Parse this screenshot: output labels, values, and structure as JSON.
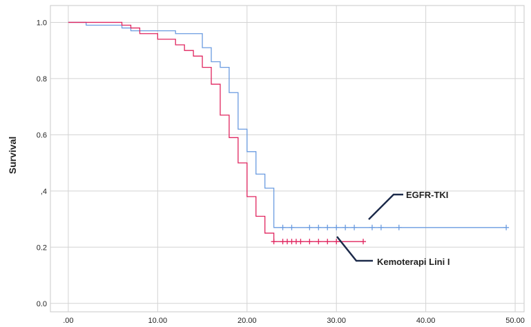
{
  "chart_data": {
    "type": "line",
    "subtype": "kaplan-meier step",
    "title": "",
    "xlabel": "",
    "ylabel": "Survival",
    "xlim": [
      -2,
      51
    ],
    "ylim": [
      -0.03,
      1.06
    ],
    "grid": true,
    "x_ticks": [
      0,
      10,
      20,
      30,
      40,
      50
    ],
    "x_tick_labels": [
      ".00",
      "10.00",
      "20.00",
      "30.00",
      "40.00",
      "50.00"
    ],
    "y_ticks": [
      0,
      0.2,
      0.4,
      0.6,
      0.8,
      1.0
    ],
    "y_tick_labels": [
      "0.0",
      "0.2",
      ",4",
      "0.6",
      "0.8",
      "1.0"
    ],
    "series": [
      {
        "name": "EGFR-TKI",
        "color": "#6a9be0",
        "steps": [
          [
            0,
            1.0
          ],
          [
            2,
            0.99
          ],
          [
            6,
            0.98
          ],
          [
            7,
            0.97
          ],
          [
            12,
            0.96
          ],
          [
            15,
            0.91
          ],
          [
            16,
            0.86
          ],
          [
            17,
            0.84
          ],
          [
            18,
            0.75
          ],
          [
            19,
            0.62
          ],
          [
            20,
            0.54
          ],
          [
            21,
            0.46
          ],
          [
            22,
            0.41
          ],
          [
            23,
            0.27
          ],
          [
            49,
            0.27
          ]
        ],
        "censored": [
          24,
          25,
          27,
          28,
          29,
          30,
          31,
          32,
          34,
          35,
          37,
          49
        ]
      },
      {
        "name": "Kemoterapi Lini I",
        "color": "#e0245e",
        "steps": [
          [
            0,
            1.0
          ],
          [
            6,
            0.99
          ],
          [
            7,
            0.98
          ],
          [
            8,
            0.96
          ],
          [
            10,
            0.94
          ],
          [
            12,
            0.92
          ],
          [
            13,
            0.9
          ],
          [
            14,
            0.88
          ],
          [
            15,
            0.84
          ],
          [
            16,
            0.78
          ],
          [
            17,
            0.67
          ],
          [
            18,
            0.59
          ],
          [
            19,
            0.5
          ],
          [
            20,
            0.38
          ],
          [
            21,
            0.31
          ],
          [
            22,
            0.25
          ],
          [
            23,
            0.22
          ],
          [
            33,
            0.22
          ]
        ],
        "censored": [
          23,
          24,
          24.5,
          25,
          25.5,
          26,
          27,
          28,
          29,
          30,
          33
        ]
      }
    ],
    "annotations": [
      {
        "text": "EGFR-TKI",
        "series": "EGFR-TKI"
      },
      {
        "text": "Kemoterapi Lini I",
        "series": "Kemoterapi Lini I"
      }
    ]
  }
}
